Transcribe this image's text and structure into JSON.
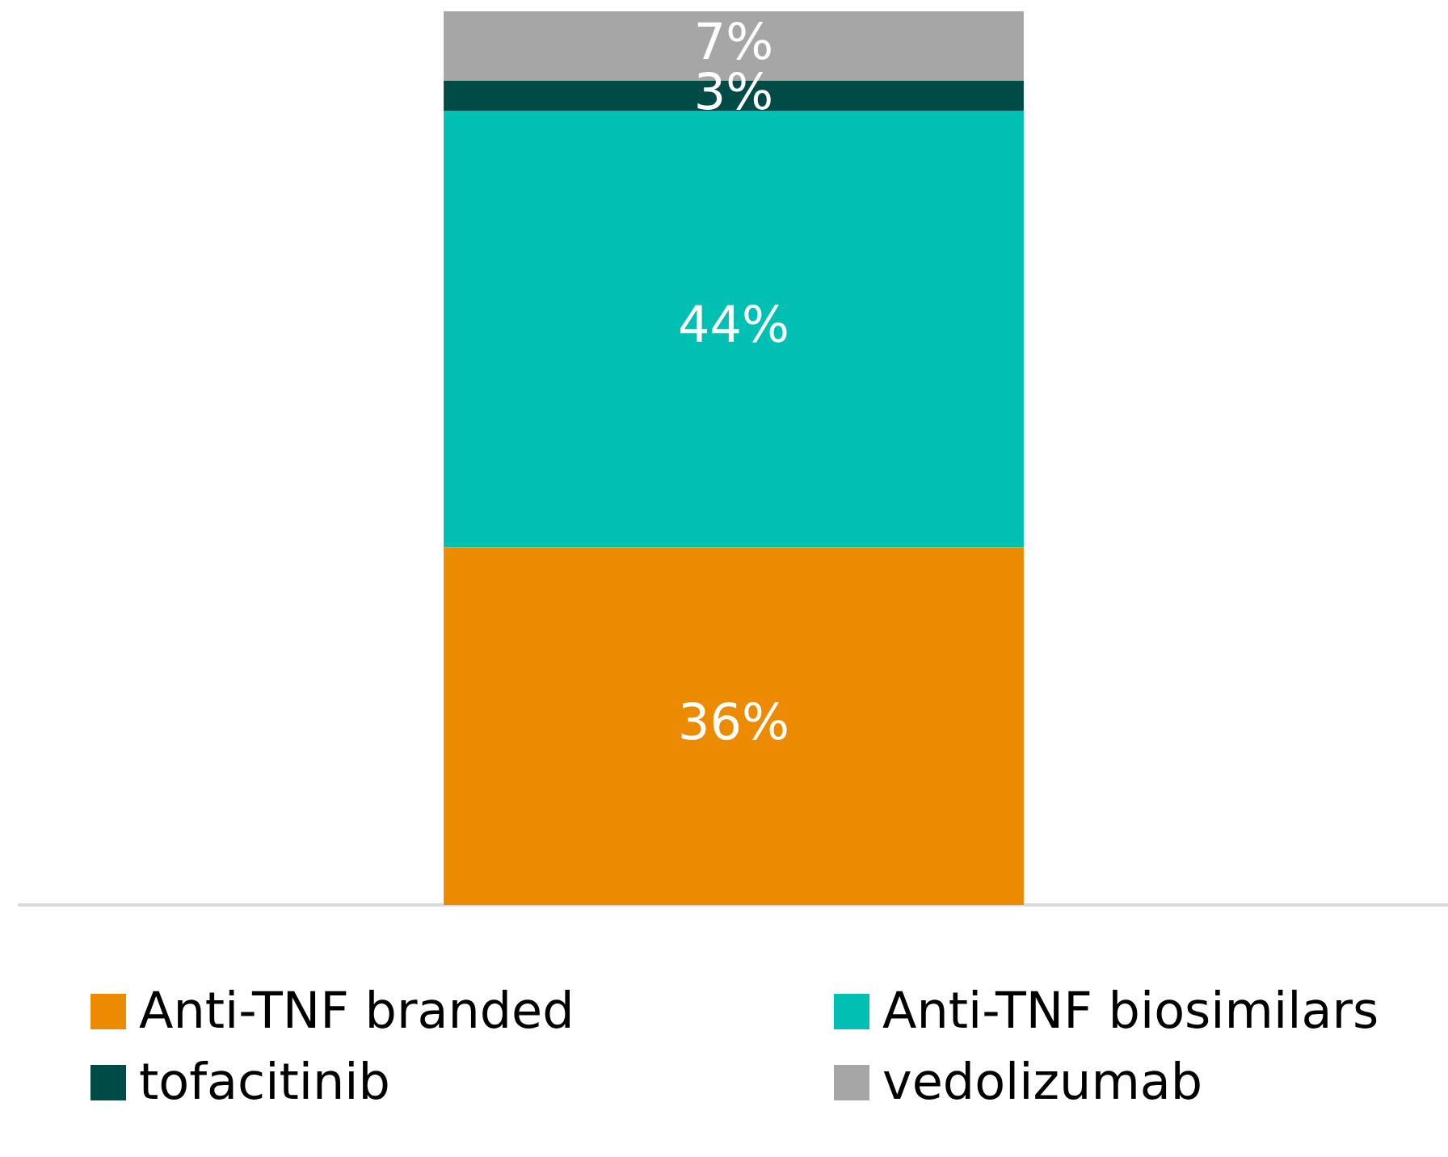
{
  "chart_data": {
    "type": "bar",
    "stacked": true,
    "categories": [
      null
    ],
    "legend": "bottom",
    "series": [
      {
        "name": "Anti-TNF branded",
        "color": "#ec8b00",
        "values": [
          36
        ],
        "value_labels": [
          "36%"
        ]
      },
      {
        "name": "Anti-TNF biosimilars",
        "color": "#00bfb3",
        "values": [
          44
        ],
        "value_labels": [
          "44%"
        ]
      },
      {
        "name": "tofacitinib",
        "color": "#004b45",
        "values": [
          3
        ],
        "value_labels": [
          "3%"
        ]
      },
      {
        "name": "vedolizumab",
        "color": "#a6a6a6",
        "values": [
          7
        ],
        "value_labels": [
          "7%"
        ]
      }
    ]
  }
}
